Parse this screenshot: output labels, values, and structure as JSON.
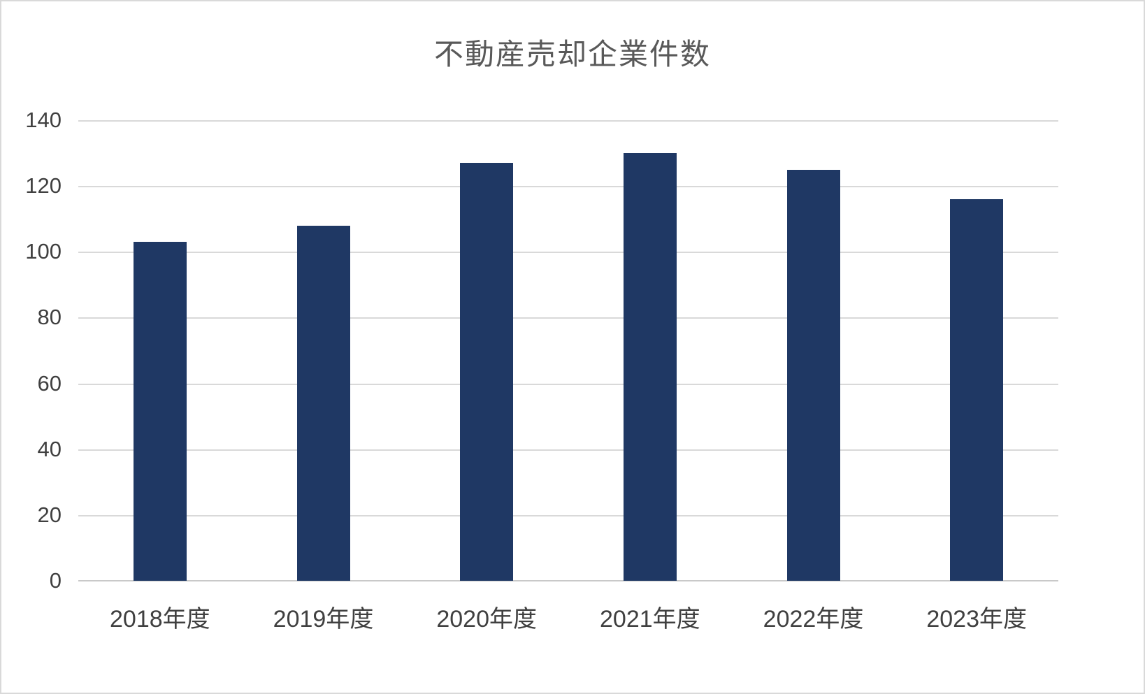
{
  "chart_data": {
    "type": "bar",
    "title": "不動産売却企業件数",
    "categories": [
      "2018年度",
      "2019年度",
      "2020年度",
      "2021年度",
      "2022年度",
      "2023年度"
    ],
    "values": [
      103,
      108,
      127,
      130,
      125,
      116
    ],
    "xlabel": "",
    "ylabel": "",
    "ylim": [
      0,
      140
    ],
    "ytick_step": 20,
    "yticks": [
      0,
      20,
      40,
      60,
      80,
      100,
      120,
      140
    ],
    "grid": "horizontal",
    "legend": "none",
    "colors": {
      "bar": "#1f3864",
      "title_text": "#595959",
      "axis_text": "#404040",
      "gridline": "#d9d9d9",
      "axis_line": "#c9c9c9",
      "frame_border": "#d9d9d9",
      "background": "#ffffff"
    }
  }
}
